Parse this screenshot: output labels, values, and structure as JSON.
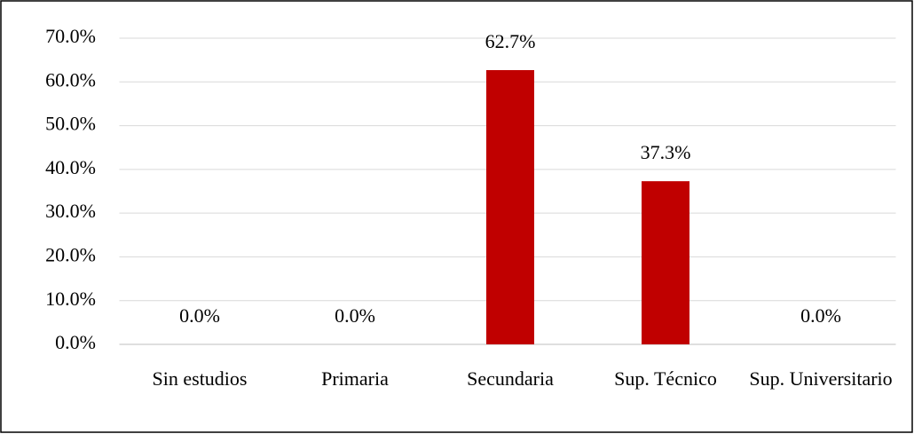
{
  "chart_data": {
    "type": "bar",
    "categories": [
      "Sin estudios",
      "Primaria",
      "Secundaria",
      "Sup. Técnico",
      "Sup. Universitario"
    ],
    "values": [
      0,
      0,
      62.7,
      37.3,
      0
    ],
    "value_labels": [
      "0.0%",
      "0.0%",
      "62.7%",
      "37.3%",
      "0.0%"
    ],
    "color": "#c00000",
    "ylim": [
      0,
      70
    ],
    "yticks": [
      {
        "value": 0,
        "label": "0.0%"
      },
      {
        "value": 10,
        "label": "10.0%"
      },
      {
        "value": 20,
        "label": "20.0%"
      },
      {
        "value": 30,
        "label": "30.0%"
      },
      {
        "value": 40,
        "label": "40.0%"
      },
      {
        "value": 50,
        "label": "50.0%"
      },
      {
        "value": 60,
        "label": "60.0%"
      },
      {
        "value": 70,
        "label": "70.0%"
      }
    ],
    "grid": true
  }
}
